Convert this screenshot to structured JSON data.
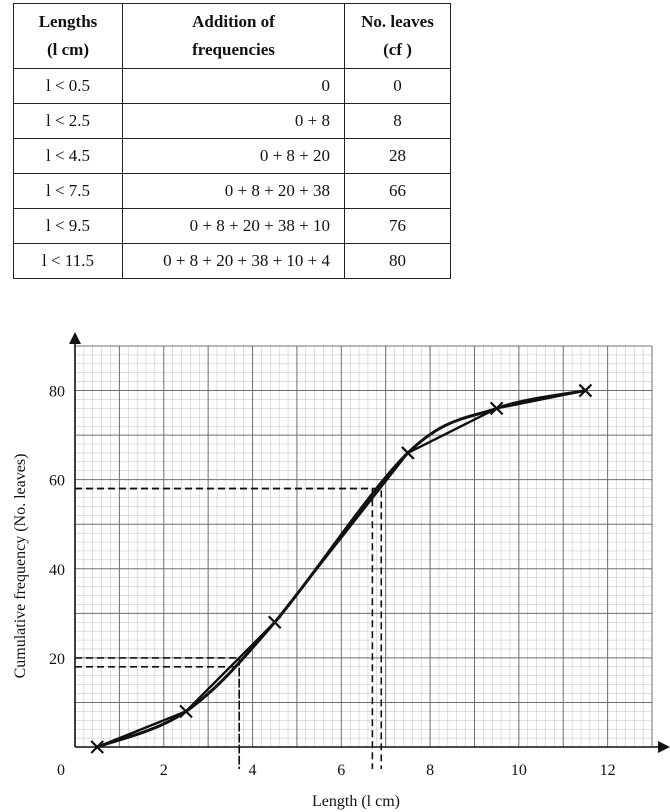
{
  "table": {
    "headers": {
      "length_line1": "Lengths",
      "length_line2": "(l cm)",
      "addition_line1": "Addition of",
      "addition_line2": "frequencies",
      "leaves_line1": "No. leaves",
      "leaves_line2": "(cf )"
    },
    "rows": [
      {
        "length": "l < 0.5",
        "addition": "0",
        "cf": "0"
      },
      {
        "length": "l < 2.5",
        "addition": "0 + 8",
        "cf": "8"
      },
      {
        "length": "l < 4.5",
        "addition": "0 + 8 + 20",
        "cf": "28"
      },
      {
        "length": "l < 7.5",
        "addition": "0 + 8 + 20 + 38",
        "cf": "66"
      },
      {
        "length": "l < 9.5",
        "addition": "0 + 8 + 20 + 38 + 10",
        "cf": "76"
      },
      {
        "length": "l < 11.5",
        "addition": "0 + 8 + 20 + 38 + 10 + 4",
        "cf": "80"
      }
    ]
  },
  "chart_data": {
    "type": "line",
    "xlabel": "Length (l cm)",
    "ylabel": "Cumulative frequency (No. leaves)",
    "xlim": [
      0,
      13
    ],
    "ylim": [
      0,
      90
    ],
    "xticks": [
      0,
      2,
      4,
      6,
      8,
      10,
      12
    ],
    "yticks": [
      20,
      40,
      60,
      80
    ],
    "grid": true,
    "points": {
      "x": [
        0.5,
        2.5,
        4.5,
        7.5,
        9.5,
        11.5
      ],
      "y": [
        0,
        8,
        28,
        66,
        76,
        80
      ]
    },
    "readings": [
      {
        "y": 58,
        "x": 6.7
      },
      {
        "y": 58,
        "x": 6.9
      },
      {
        "y": 20,
        "x": 3.7
      },
      {
        "y": 18,
        "x": 3.7
      }
    ]
  }
}
